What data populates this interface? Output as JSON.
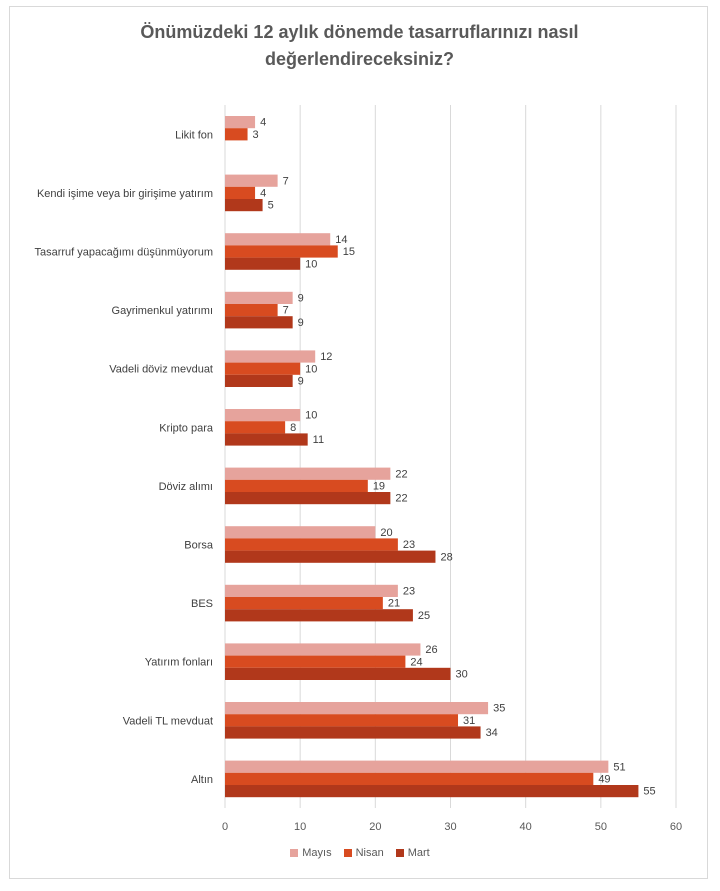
{
  "chart_data": {
    "type": "bar",
    "orientation": "horizontal",
    "title_line1": "Önümüzdeki 12 aylık dönemde tasarruflarınızı nasıl",
    "title_line2": "değerlendireceksiniz?",
    "categories": [
      "Likit fon",
      "Kendi işime veya bir girişime yatırım",
      "Tasarruf yapacağımı düşünmüyorum",
      "Gayrimenkul yatırımı",
      "Vadeli döviz mevduat",
      "Kripto para",
      "Döviz alımı",
      "Borsa",
      "BES",
      "Yatırım fonları",
      "Vadeli TL mevduat",
      "Altın"
    ],
    "series": [
      {
        "name": "Mayıs",
        "color": "#e6a39c",
        "values": [
          4,
          7,
          14,
          9,
          12,
          10,
          22,
          20,
          23,
          26,
          35,
          51
        ]
      },
      {
        "name": "Nisan",
        "color": "#d84b20",
        "values": [
          3,
          4,
          15,
          7,
          10,
          8,
          19,
          23,
          21,
          24,
          31,
          49
        ]
      },
      {
        "name": "Mart",
        "color": "#b1381b",
        "values": [
          null,
          5,
          10,
          9,
          9,
          11,
          22,
          28,
          25,
          30,
          34,
          55
        ]
      }
    ],
    "xlim": [
      0,
      60
    ],
    "xticks": [
      "0",
      "10",
      "20",
      "30",
      "40",
      "50",
      "60"
    ],
    "grid": true,
    "legend_position": "bottom"
  }
}
